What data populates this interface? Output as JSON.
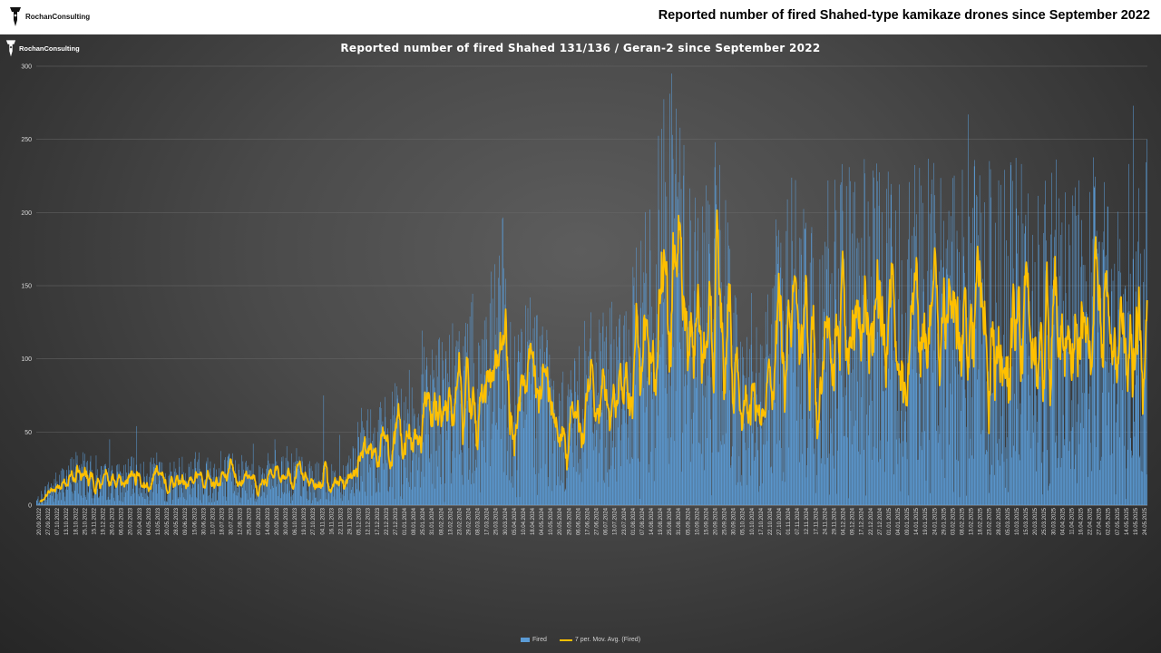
{
  "header": {
    "brand": "RochanConsulting",
    "title": "Reported number of fired Shahed-type kamikaze drones since September 2022"
  },
  "colors": {
    "bar": "#5b9bd5",
    "line": "#ffc000",
    "grid": "#6a6a6a",
    "axis_text": "#d9d9d9"
  },
  "chart_data": {
    "type": "bar",
    "title": "Reported number of fired Shahed 131/136 / Geran-2 since September 2022",
    "brand": "RochanConsulting",
    "ylim": [
      0,
      300
    ],
    "y_ticks": [
      0,
      50,
      100,
      150,
      200,
      250,
      300
    ],
    "grid": true,
    "legend_position": "bottom",
    "x_tick_labels": [
      "20.09.2022",
      "27.09.2022",
      "07.10.2022",
      "13.10.2022",
      "18.10.2022",
      "25.10.2022",
      "15.11.2022",
      "19.12.2022",
      "26.01.2023",
      "06.03.2023",
      "20.03.2023",
      "20.04.2023",
      "04.05.2023",
      "13.05.2023",
      "20.05.2023",
      "28.05.2023",
      "09.06.2023",
      "15.06.2023",
      "30.06.2023",
      "11.07.2023",
      "18.07.2023",
      "30.07.2023",
      "12.08.2023",
      "25.08.2023",
      "07.09.2023",
      "14.09.2023",
      "20.09.2023",
      "30.09.2023",
      "06.10.2023",
      "19.10.2023",
      "27.10.2023",
      "04.11.2023",
      "16.11.2023",
      "22.11.2023",
      "29.11.2023",
      "05.12.2023",
      "12.12.2023",
      "17.12.2023",
      "22.12.2023",
      "27.12.2023",
      "01.01.2024",
      "08.01.2024",
      "25.01.2024",
      "31.01.2024",
      "08.02.2024",
      "13.02.2024",
      "23.02.2024",
      "29.02.2024",
      "08.03.2024",
      "17.03.2024",
      "25.03.2024",
      "30.03.2024",
      "05.04.2024",
      "10.04.2024",
      "18.04.2024",
      "04.05.2024",
      "10.05.2024",
      "20.05.2024",
      "29.05.2024",
      "06.06.2024",
      "17.06.2024",
      "27.06.2024",
      "06.07.2024",
      "13.07.2024",
      "23.07.2024",
      "01.08.2024",
      "07.08.2024",
      "14.08.2024",
      "19.08.2024",
      "25.08.2024",
      "31.08.2024",
      "05.09.2024",
      "10.09.2024",
      "15.09.2024",
      "20.09.2024",
      "25.09.2024",
      "30.09.2024",
      "05.10.2024",
      "10.10.2024",
      "17.10.2024",
      "22.10.2024",
      "27.10.2024",
      "01.11.2024",
      "07.11.2024",
      "12.11.2024",
      "17.11.2024",
      "24.11.2024",
      "29.11.2024",
      "04.12.2024",
      "09.12.2024",
      "17.12.2024",
      "22.12.2024",
      "27.12.2024",
      "01.01.2025",
      "04.01.2025",
      "09.01.2025",
      "14.01.2025",
      "19.01.2025",
      "24.01.2025",
      "29.01.2025",
      "03.02.2025",
      "08.02.2025",
      "13.02.2025",
      "18.02.2025",
      "23.02.2025",
      "28.02.2025",
      "05.03.2025",
      "10.03.2025",
      "15.03.2025",
      "20.03.2025",
      "25.03.2025",
      "30.03.2025",
      "04.04.2025",
      "11.04.2025",
      "16.04.2025",
      "22.04.2025",
      "27.04.2025",
      "02.05.2025",
      "07.05.2025",
      "14.05.2025",
      "19.05.2025",
      "24.05.2025"
    ],
    "anchors": [
      [
        0,
        3
      ],
      [
        20,
        10
      ],
      [
        40,
        15
      ],
      [
        60,
        20
      ],
      [
        80,
        25
      ],
      [
        100,
        20
      ],
      [
        120,
        18
      ],
      [
        140,
        17
      ],
      [
        160,
        18
      ],
      [
        180,
        20
      ],
      [
        200,
        18
      ],
      [
        220,
        20
      ],
      [
        240,
        18
      ],
      [
        260,
        20
      ],
      [
        280,
        22
      ],
      [
        300,
        23
      ],
      [
        320,
        22
      ],
      [
        340,
        20
      ],
      [
        360,
        22
      ],
      [
        380,
        22
      ],
      [
        400,
        18
      ],
      [
        420,
        20
      ],
      [
        440,
        23
      ],
      [
        460,
        25
      ],
      [
        480,
        22
      ],
      [
        500,
        18
      ],
      [
        520,
        18
      ],
      [
        540,
        16
      ],
      [
        560,
        18
      ],
      [
        580,
        24
      ],
      [
        600,
        40
      ],
      [
        620,
        42
      ],
      [
        640,
        45
      ],
      [
        660,
        50
      ],
      [
        680,
        50
      ],
      [
        700,
        62
      ],
      [
        720,
        78
      ],
      [
        740,
        72
      ],
      [
        760,
        70
      ],
      [
        780,
        78
      ],
      [
        800,
        85
      ],
      [
        820,
        85
      ],
      [
        840,
        95
      ],
      [
        860,
        118
      ],
      [
        880,
        75
      ],
      [
        900,
        85
      ],
      [
        920,
        90
      ],
      [
        940,
        85
      ],
      [
        960,
        45
      ],
      [
        980,
        60
      ],
      [
        1000,
        70
      ],
      [
        1020,
        78
      ],
      [
        1040,
        75
      ],
      [
        1060,
        85
      ],
      [
        1080,
        80
      ],
      [
        1100,
        95
      ],
      [
        1120,
        120
      ],
      [
        1140,
        140
      ],
      [
        1160,
        180
      ],
      [
        1180,
        185
      ],
      [
        1200,
        140
      ],
      [
        1220,
        135
      ],
      [
        1240,
        140
      ],
      [
        1260,
        150
      ],
      [
        1280,
        120
      ],
      [
        1300,
        75
      ],
      [
        1320,
        75
      ],
      [
        1340,
        70
      ],
      [
        1360,
        110
      ],
      [
        1380,
        130
      ],
      [
        1400,
        140
      ],
      [
        1420,
        115
      ],
      [
        1440,
        110
      ],
      [
        1460,
        140
      ]
    ],
    "spikes": [
      [
        60,
        24
      ],
      [
        110,
        34
      ],
      [
        135,
        45
      ],
      [
        185,
        54
      ],
      [
        222,
        36
      ],
      [
        300,
        36
      ],
      [
        340,
        37
      ],
      [
        400,
        42
      ],
      [
        440,
        45
      ],
      [
        480,
        39
      ],
      [
        530,
        75
      ],
      [
        560,
        48
      ],
      [
        620,
        44
      ],
      [
        720,
        101
      ],
      [
        840,
        45
      ],
      [
        870,
        53
      ],
      [
        900,
        64
      ],
      [
        950,
        60
      ],
      [
        1015,
        89
      ],
      [
        1040,
        45
      ],
      [
        1060,
        110
      ],
      [
        1080,
        55
      ],
      [
        1120,
        80
      ],
      [
        1160,
        80
      ],
      [
        1180,
        78
      ],
      [
        1200,
        100
      ],
      [
        1230,
        105
      ],
      [
        1260,
        136
      ],
      [
        1290,
        95
      ],
      [
        1320,
        145
      ],
      [
        1370,
        188
      ],
      [
        1390,
        120
      ],
      [
        1420,
        193
      ],
      [
        1450,
        113
      ],
      [
        1470,
        110
      ],
      [
        1510,
        128
      ],
      [
        1540,
        120
      ],
      [
        1580,
        140
      ],
      [
        1620,
        150
      ],
      [
        1660,
        164
      ],
      [
        1700,
        175
      ],
      [
        1720,
        267
      ],
      [
        1735,
        212
      ],
      [
        1750,
        207
      ],
      [
        1770,
        193
      ],
      [
        1790,
        181
      ],
      [
        1810,
        172
      ],
      [
        1830,
        213
      ],
      [
        1850,
        178
      ],
      [
        1870,
        150
      ],
      [
        1900,
        145
      ],
      [
        1930,
        170
      ],
      [
        1950,
        182
      ],
      [
        1970,
        187
      ],
      [
        1990,
        165
      ],
      [
        2010,
        150
      ],
      [
        2025,
        273
      ],
      [
        2045,
        175
      ],
      [
        2050,
        250
      ]
    ],
    "x_count": 2051,
    "series": [
      {
        "name": "Fired",
        "type": "bar"
      },
      {
        "name": "7 per. Mov. Avg. (Fired)",
        "type": "line",
        "window": 7
      }
    ]
  }
}
